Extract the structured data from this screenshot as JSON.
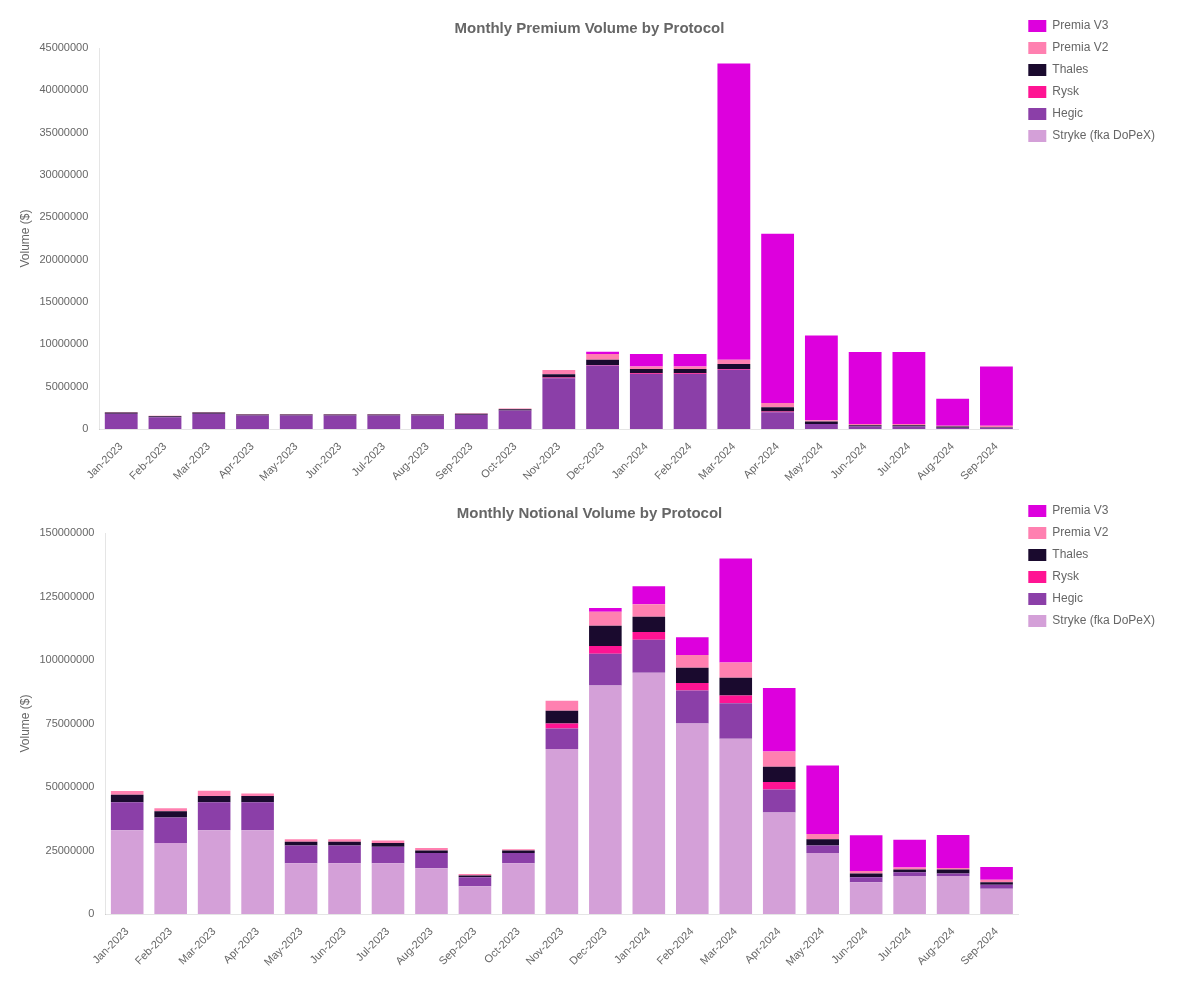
{
  "chart_data": [
    {
      "type": "bar",
      "title": "Monthly Premium Volume by Protocol",
      "ylabel": "Volume ($)",
      "stacked": true,
      "grid": false,
      "legend": "right",
      "categories": [
        "Jan-2023",
        "Feb-2023",
        "Mar-2023",
        "Apr-2023",
        "May-2023",
        "Jun-2023",
        "Jul-2023",
        "Aug-2023",
        "Sep-2023",
        "Oct-2023",
        "Nov-2023",
        "Dec-2023",
        "Jan-2024",
        "Feb-2024",
        "Mar-2024",
        "Apr-2024",
        "May-2024",
        "Jun-2024",
        "Jul-2024",
        "Aug-2024",
        "Sep-2024"
      ],
      "series": [
        {
          "name": "Stryke (fka DoPeX)",
          "color": "#d4a0d8",
          "values": [
            0,
            0,
            0,
            0,
            0,
            0,
            0,
            0,
            0,
            0,
            0,
            0,
            0,
            0,
            0,
            0,
            0,
            0,
            0,
            0,
            0
          ]
        },
        {
          "name": "Hegic",
          "color": "#8b3fa8",
          "values": [
            1800000,
            1400000,
            1800000,
            1600000,
            1600000,
            1600000,
            1600000,
            1600000,
            1700000,
            2200000,
            6000000,
            7500000,
            6500000,
            6500000,
            7000000,
            2000000,
            600000,
            300000,
            300000,
            150000,
            150000
          ]
        },
        {
          "name": "Rysk",
          "color": "#ff1493",
          "values": [
            0,
            0,
            0,
            0,
            0,
            0,
            0,
            0,
            0,
            0,
            80000,
            80000,
            80000,
            80000,
            80000,
            80000,
            0,
            0,
            0,
            0,
            0
          ]
        },
        {
          "name": "Thales",
          "color": "#1a0a2e",
          "values": [
            150000,
            120000,
            150000,
            120000,
            120000,
            120000,
            120000,
            120000,
            120000,
            150000,
            400000,
            600000,
            500000,
            500000,
            600000,
            500000,
            300000,
            150000,
            150000,
            150000,
            80000
          ]
        },
        {
          "name": "Premia V2",
          "color": "#ff80b0",
          "values": [
            80000,
            60000,
            60000,
            60000,
            60000,
            55000,
            55000,
            55000,
            60000,
            70000,
            500000,
            700000,
            300000,
            300000,
            500000,
            500000,
            150000,
            150000,
            150000,
            80000,
            150000
          ]
        },
        {
          "name": "Premia V3",
          "color": "#dd00dd",
          "values": [
            0,
            0,
            0,
            0,
            0,
            0,
            0,
            0,
            0,
            0,
            0,
            250000,
            1500000,
            1500000,
            35000000,
            20000000,
            10000000,
            8500000,
            8500000,
            3200000,
            7000000
          ]
        }
      ],
      "ylim": [
        0,
        45000000
      ],
      "yticks": [
        0,
        5000000,
        10000000,
        15000000,
        20000000,
        25000000,
        30000000,
        35000000,
        40000000,
        45000000
      ]
    },
    {
      "type": "bar",
      "title": "Monthly Notional Volume by Protocol",
      "ylabel": "Volume ($)",
      "stacked": true,
      "grid": false,
      "legend": "right",
      "categories": [
        "Jan-2023",
        "Feb-2023",
        "Mar-2023",
        "Apr-2023",
        "May-2023",
        "Jun-2023",
        "Jul-2023",
        "Aug-2023",
        "Sep-2023",
        "Oct-2023",
        "Nov-2023",
        "Dec-2023",
        "Jan-2024",
        "Feb-2024",
        "Mar-2024",
        "Apr-2024",
        "May-2024",
        "Jun-2024",
        "Jul-2024",
        "Aug-2024",
        "Sep-2024"
      ],
      "series": [
        {
          "name": "Stryke (fka DoPeX)",
          "color": "#d4a0d8",
          "values": [
            33000000,
            28000000,
            33000000,
            33000000,
            20000000,
            20000000,
            20000000,
            18000000,
            11000000,
            20000000,
            65000000,
            90000000,
            95000000,
            75000000,
            69000000,
            40000000,
            24000000,
            12500000,
            15000000,
            15000000,
            10000000
          ]
        },
        {
          "name": "Hegic",
          "color": "#8b3fa8",
          "values": [
            11000000,
            10000000,
            11000000,
            11000000,
            7000000,
            7000000,
            6500000,
            6000000,
            3500000,
            4000000,
            8000000,
            12500000,
            13000000,
            13000000,
            14000000,
            9000000,
            3000000,
            2000000,
            1500000,
            1000000,
            1500000
          ]
        },
        {
          "name": "Rysk",
          "color": "#ff1493",
          "values": [
            0,
            0,
            0,
            0,
            0,
            0,
            0,
            0,
            0,
            0,
            2000000,
            3000000,
            3000000,
            3000000,
            3000000,
            3000000,
            0,
            0,
            0,
            0,
            0
          ]
        },
        {
          "name": "Thales",
          "color": "#1a0a2e",
          "values": [
            3000000,
            2500000,
            2500000,
            2500000,
            1500000,
            1500000,
            1500000,
            1000000,
            700000,
            1000000,
            5000000,
            8000000,
            6000000,
            6000000,
            7000000,
            6000000,
            2500000,
            1500000,
            1000000,
            1500000,
            1000000
          ]
        },
        {
          "name": "Premia V2",
          "color": "#ff80b0",
          "values": [
            1400000,
            1200000,
            2000000,
            1000000,
            1000000,
            1000000,
            1000000,
            1000000,
            600000,
            500000,
            4000000,
            5500000,
            5000000,
            5000000,
            6000000,
            6000000,
            2000000,
            1000000,
            800000,
            600000,
            1000000
          ]
        },
        {
          "name": "Premia V3",
          "color": "#dd00dd",
          "values": [
            0,
            0,
            0,
            0,
            0,
            0,
            0,
            0,
            0,
            0,
            0,
            1500000,
            7000000,
            7000000,
            41000000,
            25000000,
            27000000,
            14000000,
            11000000,
            13000000,
            5000000
          ]
        }
      ],
      "ylim": [
        0,
        150000000
      ],
      "yticks": [
        0,
        25000000,
        50000000,
        75000000,
        100000000,
        125000000,
        150000000
      ]
    }
  ]
}
